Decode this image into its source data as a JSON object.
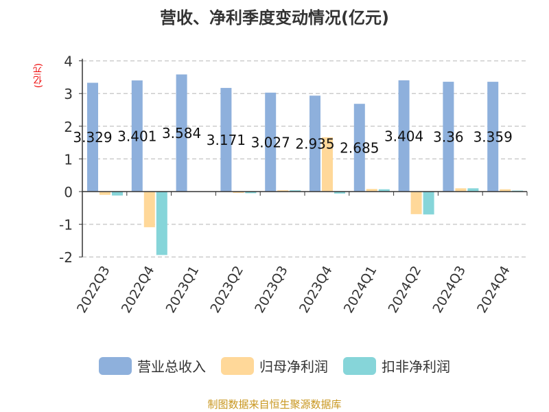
{
  "chart_data": {
    "type": "bar",
    "title": "营收、净利季度变动情况(亿元)",
    "ylabel": "(亿元)",
    "ylim": [
      -2,
      4
    ],
    "yticks": [
      -2,
      -1,
      0,
      1,
      2,
      3,
      4
    ],
    "grid": true,
    "legend_position": "bottom",
    "categories": [
      "2022Q3",
      "2022Q4",
      "2023Q1",
      "2023Q2",
      "2023Q3",
      "2023Q4",
      "2024Q1",
      "2024Q2",
      "2024Q3",
      "2024Q4"
    ],
    "series": [
      {
        "name": "营业总收入",
        "color": "#8eb0dc",
        "values": [
          3.329,
          3.401,
          3.584,
          3.171,
          3.027,
          2.935,
          2.685,
          3.404,
          3.36,
          3.359
        ],
        "labels": [
          "3.329",
          "3.401",
          "3.584",
          "3.171",
          "3.027",
          "2.935",
          "2.685",
          "3.404",
          "3.36",
          "3.359"
        ]
      },
      {
        "name": "归母净利润",
        "color": "#ffd899",
        "values": [
          -0.1,
          -1.09,
          0.0,
          -0.04,
          0.04,
          1.66,
          0.08,
          -0.69,
          0.1,
          0.07
        ]
      },
      {
        "name": "扣非净利润",
        "color": "#86d5d9",
        "values": [
          -0.12,
          -1.94,
          0.0,
          -0.05,
          0.04,
          -0.06,
          0.07,
          -0.7,
          0.1,
          0.03
        ]
      }
    ]
  },
  "source": "制图数据来自恒生聚源数据库"
}
